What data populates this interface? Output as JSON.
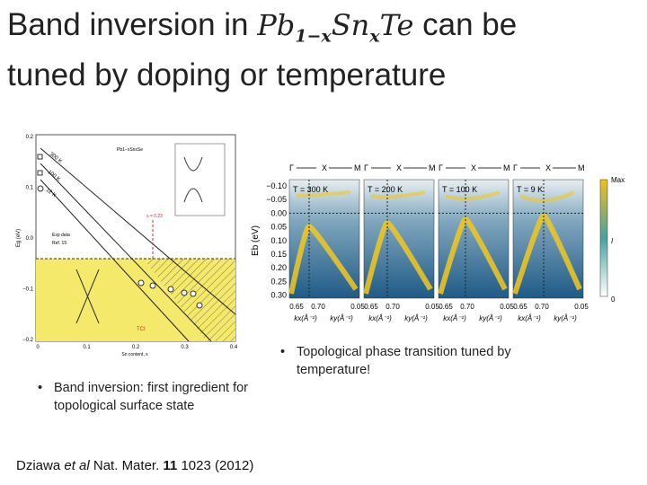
{
  "title": {
    "before": "Band inversion in ",
    "formula": [
      "Pb",
      "1−x",
      "Sn",
      "x",
      "Te"
    ],
    "after": " can be",
    "line2": "tuned by doping or temperature"
  },
  "left_figure": {
    "compound": "Pb1−xSnxSe",
    "y_label": "Eg (eV)",
    "x_label": "Sn content, x",
    "y_ticks": [
      "0.2",
      "0.1",
      "0.0",
      "−0.1",
      "−0.2"
    ],
    "x_ticks": [
      "0",
      "0.1",
      "0.2",
      "0.3",
      "0.4"
    ],
    "legend": [
      "Exp data",
      "Ref. 15"
    ],
    "temps": [
      "300 K",
      "100 K",
      "12 K"
    ],
    "marker": "x = 0.23",
    "phase": "TCI"
  },
  "right_figure": {
    "y_label": "Eb (eV)",
    "y_ticks": [
      "−0.10",
      "−0.05",
      "0.00",
      "0.05",
      "0.10",
      "0.15",
      "0.20",
      "0.25",
      "0.30"
    ],
    "panels": [
      "T = 300 K",
      "T = 200 K",
      "T = 100 K",
      "T = 9 K"
    ],
    "k_path": [
      "Γ",
      "X",
      "M"
    ],
    "k_ticks": [
      "0.65",
      "0.70",
      "0.05"
    ],
    "k_labels": [
      "kx(Å⁻¹)",
      "ky(Å⁻¹)"
    ],
    "colorbar": [
      "Max",
      "I",
      "0"
    ]
  },
  "bullets": [
    "Band inversion: first ingredient for topological surface state",
    "Topological phase transition tuned by temperature!"
  ],
  "citation": {
    "author": "Dziawa ",
    "etal": "et al",
    "journal": " Nat. Mater. ",
    "volume": "11",
    "rest": " 1023 (2012)"
  }
}
